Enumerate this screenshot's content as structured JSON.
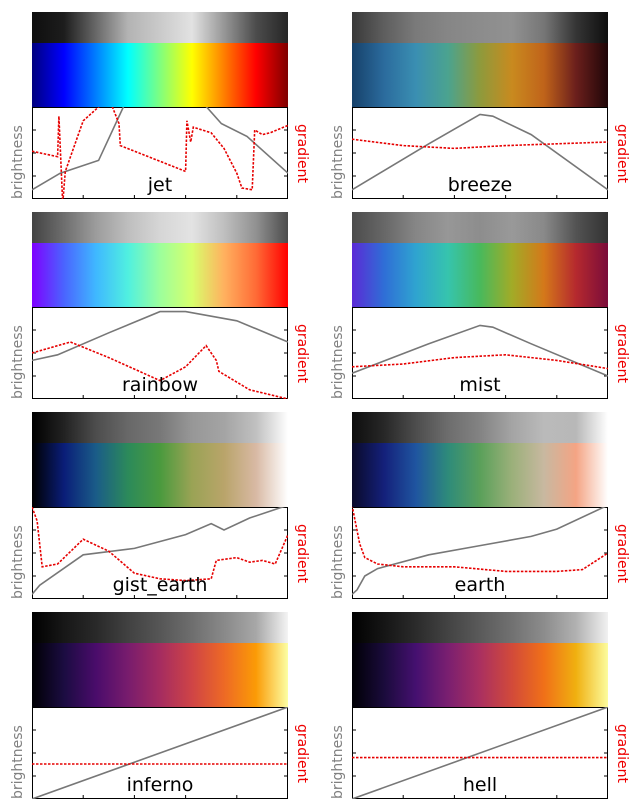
{
  "axis_labels": {
    "left": "brightness",
    "right": "gradient"
  },
  "chart_data": [
    {
      "type": "line",
      "name": "jet",
      "stops": [
        "#00007f",
        "#0000ff",
        "#007fff",
        "#00ffff",
        "#7fff7f",
        "#ffff00",
        "#ff7f00",
        "#ff0000",
        "#7f0000"
      ],
      "series": [
        {
          "name": "brightness",
          "x": [
            0,
            0.11,
            0.26,
            0.36,
            0.5,
            0.65,
            0.74,
            0.84,
            1
          ],
          "y": [
            0.1,
            0.28,
            0.42,
            1.02,
            1.02,
            1.1,
            0.82,
            0.68,
            0.28
          ]
        },
        {
          "name": "gradient",
          "x": [
            0,
            0.1,
            0.105,
            0.12,
            0.13,
            0.2,
            0.3,
            0.34,
            0.345,
            0.6,
            0.605,
            0.62,
            0.63,
            0.7,
            0.75,
            0.8,
            0.82,
            0.86,
            0.87,
            0.9,
            0.93,
            1
          ],
          "y": [
            0.52,
            0.46,
            0.9,
            -0.05,
            0.3,
            0.85,
            1.1,
            0.82,
            0.58,
            0.3,
            0.85,
            0.62,
            0.78,
            0.72,
            0.55,
            0.28,
            0.12,
            0.1,
            0.75,
            0.7,
            0.72,
            0.8
          ]
        }
      ]
    },
    {
      "type": "line",
      "name": "breeze",
      "stops": [
        "#16416a",
        "#2b6b9d",
        "#3a8fb2",
        "#4ba38f",
        "#8e9a3c",
        "#c98a1f",
        "#c0631a",
        "#6b1f1c",
        "#1f0608"
      ],
      "series": [
        {
          "name": "brightness",
          "x": [
            0,
            0.3,
            0.5,
            0.55,
            0.7,
            1
          ],
          "y": [
            0.1,
            0.6,
            0.92,
            0.9,
            0.7,
            0.1
          ]
        },
        {
          "name": "gradient",
          "x": [
            0,
            0.2,
            0.4,
            0.6,
            0.8,
            1
          ],
          "y": [
            0.65,
            0.58,
            0.55,
            0.58,
            0.6,
            0.62
          ]
        }
      ]
    },
    {
      "type": "line",
      "name": "rainbow",
      "stops": [
        "#7f00ff",
        "#4a64ff",
        "#3fb8ff",
        "#50f0e0",
        "#9cff9c",
        "#d8ff6c",
        "#ffb15f",
        "#ff6b36",
        "#ff0000"
      ],
      "series": [
        {
          "name": "brightness",
          "x": [
            0,
            0.1,
            0.3,
            0.5,
            0.6,
            0.8,
            1
          ],
          "y": [
            0.42,
            0.48,
            0.72,
            0.95,
            0.95,
            0.85,
            0.62
          ]
        },
        {
          "name": "gradient",
          "x": [
            0,
            0.15,
            0.3,
            0.5,
            0.6,
            0.68,
            0.72,
            0.73,
            0.85,
            1
          ],
          "y": [
            0.5,
            0.62,
            0.45,
            0.2,
            0.35,
            0.58,
            0.42,
            0.3,
            0.1,
            0.0
          ]
        }
      ]
    },
    {
      "type": "line",
      "name": "mist",
      "stops": [
        "#5b2ad6",
        "#2f6ed6",
        "#2fa4d0",
        "#36c4ad",
        "#48b95c",
        "#a2ab27",
        "#d4781a",
        "#b5292e",
        "#7a0c3a"
      ],
      "series": [
        {
          "name": "brightness",
          "x": [
            0,
            0.3,
            0.5,
            0.55,
            0.7,
            1
          ],
          "y": [
            0.28,
            0.6,
            0.8,
            0.78,
            0.6,
            0.25
          ]
        },
        {
          "name": "gradient",
          "x": [
            0,
            0.2,
            0.4,
            0.6,
            0.8,
            1
          ],
          "y": [
            0.35,
            0.38,
            0.45,
            0.48,
            0.42,
            0.33
          ]
        }
      ]
    },
    {
      "type": "line",
      "name": "gist_earth",
      "stops": [
        "#000000",
        "#0a1d78",
        "#1a5c88",
        "#2c8a5a",
        "#4a9a3e",
        "#9aa355",
        "#b9a46a",
        "#d8b9a4",
        "#ffffff"
      ],
      "series": [
        {
          "name": "brightness",
          "x": [
            0,
            0.03,
            0.2,
            0.4,
            0.6,
            0.7,
            0.75,
            0.85,
            1
          ],
          "y": [
            0.05,
            0.15,
            0.48,
            0.55,
            0.7,
            0.82,
            0.75,
            0.88,
            1.02
          ]
        },
        {
          "name": "gradient",
          "x": [
            0,
            0.02,
            0.04,
            0.1,
            0.2,
            0.3,
            0.4,
            0.5,
            0.6,
            0.7,
            0.72,
            0.8,
            0.85,
            0.9,
            0.95,
            1
          ],
          "y": [
            1.0,
            0.85,
            0.35,
            0.38,
            0.65,
            0.52,
            0.28,
            0.22,
            0.2,
            0.22,
            0.42,
            0.45,
            0.4,
            0.42,
            0.38,
            0.7
          ]
        }
      ]
    },
    {
      "type": "line",
      "name": "earth",
      "stops": [
        "#0a0a2a",
        "#14207a",
        "#1f55a0",
        "#2e8b7a",
        "#5aa05a",
        "#9bb07a",
        "#c8b8a0",
        "#f4a484",
        "#ffffff"
      ],
      "series": [
        {
          "name": "brightness",
          "x": [
            0,
            0.02,
            0.05,
            0.1,
            0.3,
            0.5,
            0.7,
            0.8,
            1
          ],
          "y": [
            0.05,
            0.1,
            0.25,
            0.33,
            0.48,
            0.58,
            0.68,
            0.76,
            1.02
          ]
        },
        {
          "name": "gradient",
          "x": [
            0,
            0.03,
            0.05,
            0.1,
            0.2,
            0.4,
            0.6,
            0.8,
            0.9,
            1
          ],
          "y": [
            1.02,
            0.6,
            0.45,
            0.38,
            0.35,
            0.35,
            0.3,
            0.3,
            0.32,
            0.5
          ]
        }
      ]
    },
    {
      "type": "line",
      "name": "inferno",
      "stops": [
        "#000004",
        "#1b0c41",
        "#4a0c6b",
        "#781c6d",
        "#a52c60",
        "#cf4446",
        "#ed6925",
        "#fb9b06",
        "#fcffa4"
      ],
      "series": [
        {
          "name": "brightness",
          "x": [
            0,
            1
          ],
          "y": [
            0,
            1
          ]
        },
        {
          "name": "gradient",
          "x": [
            0,
            1
          ],
          "y": [
            0.38,
            0.38
          ]
        }
      ]
    },
    {
      "type": "line",
      "name": "hell",
      "stops": [
        "#000005",
        "#1a0b3b",
        "#451070",
        "#7a1f70",
        "#aa3060",
        "#d24a3a",
        "#f07018",
        "#f0b010",
        "#fcfc9e"
      ],
      "series": [
        {
          "name": "brightness",
          "x": [
            0,
            1
          ],
          "y": [
            0,
            1
          ]
        },
        {
          "name": "gradient",
          "x": [
            0,
            0.5,
            1
          ],
          "y": [
            0.45,
            0.45,
            0.45
          ]
        }
      ]
    }
  ]
}
